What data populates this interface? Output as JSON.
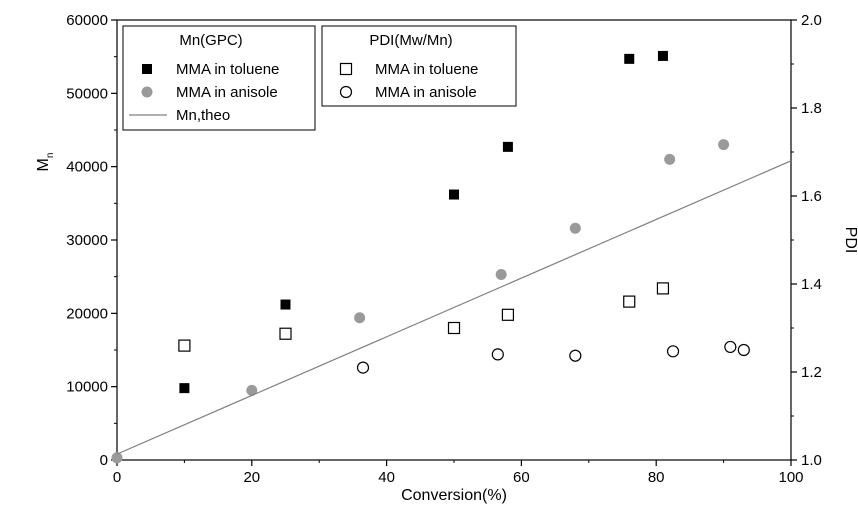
{
  "chart_data": {
    "type": "scatter",
    "xlabel": "Conversion(%)",
    "ylabel_left": {
      "main": "M",
      "sub": "n"
    },
    "ylabel_right": "PDI",
    "xlim": [
      0,
      100
    ],
    "ylim_left": [
      0,
      60000
    ],
    "ylim_right": [
      1.0,
      2.0
    ],
    "x_ticks": [
      0,
      20,
      40,
      60,
      80,
      100
    ],
    "y_left_ticks": [
      0,
      10000,
      20000,
      30000,
      40000,
      50000,
      60000
    ],
    "y_right_ticks": [
      "1.0",
      "1.2",
      "1.4",
      "1.6",
      "1.8",
      "2.0"
    ],
    "grid": false,
    "series": [
      {
        "name": "MMA in toluene",
        "group": "Mn(GPC)",
        "axis": "left",
        "marker": "square-filled",
        "color": "#000000",
        "x": [
          10,
          25,
          50,
          58,
          76,
          81
        ],
        "y": [
          9800,
          21200,
          36200,
          42700,
          54700,
          55100
        ]
      },
      {
        "name": "MMA in anisole",
        "group": "Mn(GPC)",
        "axis": "left",
        "marker": "circle-filled",
        "color": "#9a9a9a",
        "x": [
          0,
          20,
          36,
          57,
          68,
          82,
          90
        ],
        "y": [
          300,
          9500,
          19400,
          25300,
          31600,
          41000,
          43000
        ]
      },
      {
        "name": "Mn,theo",
        "group": "Mn(GPC)",
        "axis": "left",
        "marker": "line",
        "color": "#808080",
        "x": [
          0,
          100
        ],
        "y": [
          800,
          40800
        ]
      },
      {
        "name": "MMA in toluene",
        "group": "PDI(Mw/Mn)",
        "axis": "right",
        "marker": "square-open",
        "color": "#000000",
        "x": [
          10,
          25,
          50,
          58,
          76,
          81
        ],
        "y": [
          1.26,
          1.287,
          1.3,
          1.33,
          1.36,
          1.39
        ]
      },
      {
        "name": "MMA in anisole",
        "group": "PDI(Mw/Mn)",
        "axis": "right",
        "marker": "circle-open",
        "color": "#000000",
        "x": [
          36.5,
          56.5,
          68,
          82.5,
          91,
          93
        ],
        "y": [
          1.21,
          1.24,
          1.237,
          1.247,
          1.257,
          1.25
        ]
      }
    ],
    "legends": [
      {
        "title": "Mn(GPC)",
        "items": [
          "MMA in toluene",
          "MMA in anisole",
          "Mn,theo"
        ]
      },
      {
        "title": "PDI(Mw/Mn)",
        "items": [
          "MMA in toluene",
          "MMA in anisole"
        ]
      }
    ]
  }
}
